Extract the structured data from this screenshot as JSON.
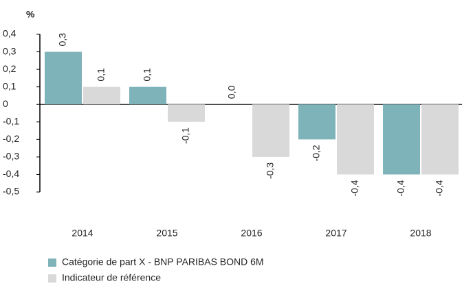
{
  "chart_data": {
    "type": "bar",
    "y_label": "%",
    "categories": [
      "2014",
      "2015",
      "2016",
      "2017",
      "2018"
    ],
    "series": [
      {
        "name": "Catégorie de part X - BNP PARIBAS BOND 6M",
        "color": "#7fb3ba",
        "values": [
          0.3,
          0.1,
          0.0,
          -0.2,
          -0.4
        ],
        "value_labels": [
          "0,3",
          "0,1",
          "0,0",
          "-0,2",
          "-0,4"
        ]
      },
      {
        "name": "Indicateur de référence",
        "color": "#d9d9d9",
        "values": [
          0.1,
          -0.1,
          -0.3,
          -0.4,
          -0.4
        ],
        "value_labels": [
          "0,1",
          "-0,1",
          "-0,3",
          "-0,4",
          "-0,4"
        ]
      }
    ],
    "ylim": [
      -0.5,
      0.4
    ],
    "yticks": [
      {
        "value": 0.4,
        "label": "0,4"
      },
      {
        "value": 0.3,
        "label": "0,3"
      },
      {
        "value": 0.2,
        "label": "0,2"
      },
      {
        "value": 0.1,
        "label": "0,1"
      },
      0,
      {
        "value": -0.1,
        "label": "-0,1"
      },
      {
        "value": -0.2,
        "label": "-0,2"
      },
      {
        "value": -0.3,
        "label": "-0,3"
      },
      {
        "value": -0.4,
        "label": "-0,4"
      },
      {
        "value": -0.5,
        "label": "-0,5"
      }
    ],
    "grid": false
  }
}
